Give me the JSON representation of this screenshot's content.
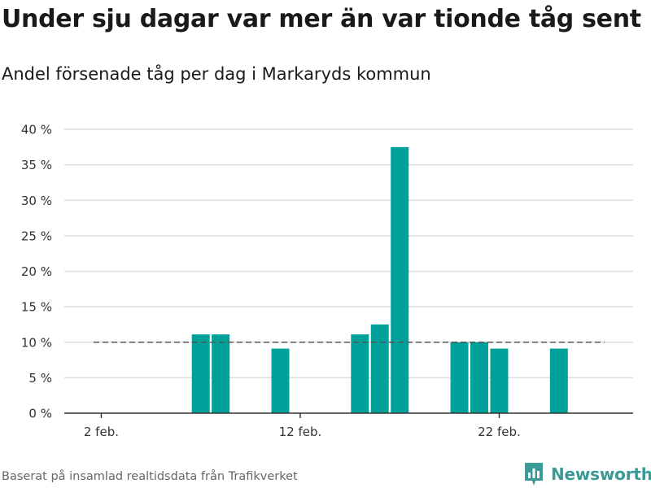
{
  "title": "Under sju dagar var mer än var tionde tåg sent",
  "subtitle": "Andel försenade tåg per dag i Markaryds kommun",
  "source": "Baserat på insamlad realtidsdata från Trafikverket",
  "brand": {
    "name": "Newsworthy",
    "icon": "newsworthy-logo-icon"
  },
  "colors": {
    "bar": "#00a19a",
    "reference_line": "#555555",
    "gridline": "#dddddd",
    "brand": "#3a9a96"
  },
  "chart_data": {
    "type": "bar",
    "title": "Under sju dagar var mer än var tionde tåg sent",
    "subtitle": "Andel försenade tåg per dag i Markaryds kommun",
    "xlabel": "",
    "ylabel": "",
    "x_dates": [
      "2024-02-01",
      "2024-02-02",
      "2024-02-03",
      "2024-02-04",
      "2024-02-05",
      "2024-02-06",
      "2024-02-07",
      "2024-02-08",
      "2024-02-09",
      "2024-02-10",
      "2024-02-11",
      "2024-02-12",
      "2024-02-13",
      "2024-02-14",
      "2024-02-15",
      "2024-02-16",
      "2024-02-17",
      "2024-02-18",
      "2024-02-19",
      "2024-02-20",
      "2024-02-21",
      "2024-02-22",
      "2024-02-23",
      "2024-02-24",
      "2024-02-25",
      "2024-02-26",
      "2024-02-27",
      "2024-02-28",
      "2024-02-29"
    ],
    "values": [
      0,
      0,
      0,
      0,
      0,
      0,
      11.1,
      11.1,
      0,
      0,
      9.1,
      0,
      0,
      0,
      11.1,
      12.5,
      37.5,
      0,
      0,
      10.0,
      10.0,
      9.1,
      0,
      0,
      9.1,
      0,
      0,
      0,
      0
    ],
    "reference_line": {
      "value": 10,
      "style": "dashed",
      "from": "2024-02-01",
      "to": "2024-02-27"
    },
    "ylim": [
      0,
      40
    ],
    "y_ticks": [
      0,
      5,
      10,
      15,
      20,
      25,
      30,
      35,
      40
    ],
    "y_tick_labels": [
      "0 %",
      "5 %",
      "10 %",
      "15 %",
      "20 %",
      "25 %",
      "30 %",
      "35 %",
      "40 %"
    ],
    "x_ticks": [
      {
        "date": "2024-02-02",
        "label": "2 feb."
      },
      {
        "date": "2024-02-12",
        "label": "12 feb."
      },
      {
        "date": "2024-02-22",
        "label": "22 feb."
      }
    ],
    "grid": true,
    "legend": "none"
  }
}
